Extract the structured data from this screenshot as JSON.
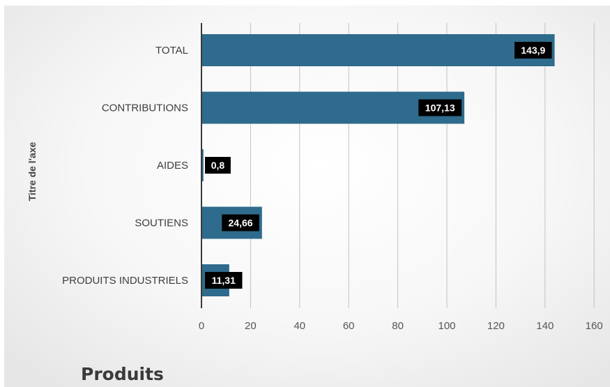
{
  "chart_data": {
    "type": "bar",
    "orientation": "horizontal",
    "categories": [
      "TOTAL",
      "CONTRIBUTIONS",
      "AIDES",
      "SOUTIENS",
      "PRODUITS INDUSTRIELS"
    ],
    "values": [
      143.9,
      107.13,
      0.8,
      24.66,
      11.31
    ],
    "data_labels": [
      "143,9",
      "107,13",
      "0,8",
      "24,66",
      "11,31"
    ],
    "ylabel": "Titre de l'axe",
    "xlim": [
      0,
      160
    ],
    "xticks": [
      0,
      20,
      40,
      60,
      80,
      100,
      120,
      140,
      160
    ],
    "grid": true,
    "bar_color": "#2e6b8c",
    "label_bg_color": "#000000"
  },
  "footer": {
    "title": "Produits"
  }
}
